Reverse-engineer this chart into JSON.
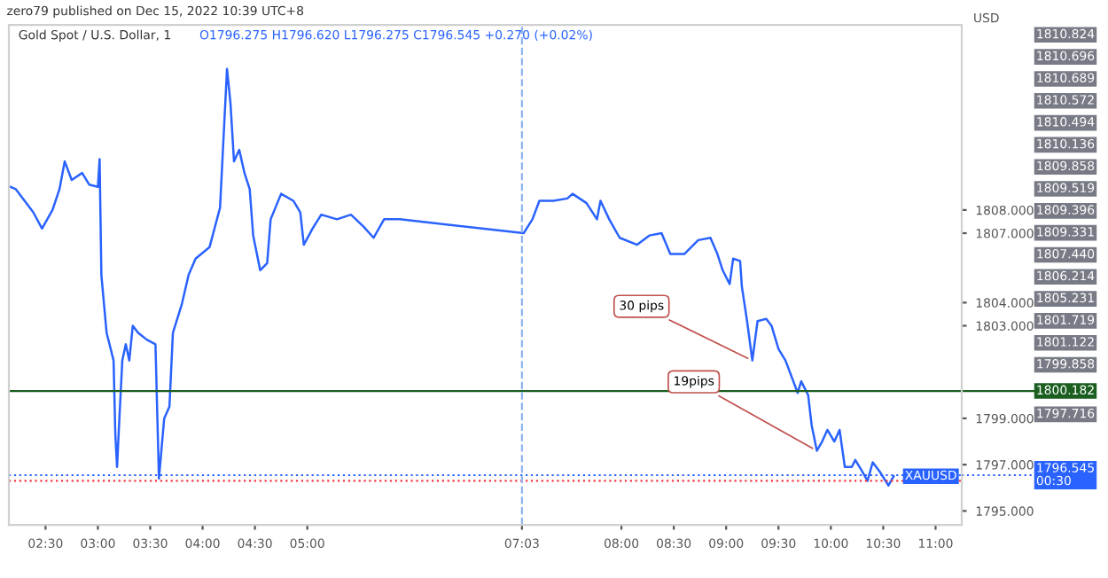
{
  "chart_data": {
    "type": "line",
    "title": "Gold Spot / U.S. Dollar, 1",
    "subtitle": "O1796.275 H1796.620 L1796.275 C1796.545 +0.270 (+0.02%)",
    "ylabel": "USD",
    "x": [
      "2022-12-15T02:10",
      "2022-12-15T02:13",
      "2022-12-15T02:18",
      "2022-12-15T02:23",
      "2022-12-15T02:28",
      "2022-12-15T02:34",
      "2022-12-15T02:38",
      "2022-12-15T02:41",
      "2022-12-15T02:45",
      "2022-12-15T02:51",
      "2022-12-15T02:55",
      "2022-12-15T03:00",
      "2022-12-15T03:01",
      "2022-12-15T03:02",
      "2022-12-15T03:05",
      "2022-12-15T03:09",
      "2022-12-15T03:10",
      "2022-12-15T03:11",
      "2022-12-15T03:12",
      "2022-12-15T03:14",
      "2022-12-15T03:16",
      "2022-12-15T03:18",
      "2022-12-15T03:20",
      "2022-12-15T03:23",
      "2022-12-15T03:28",
      "2022-12-15T03:33",
      "2022-12-15T03:35",
      "2022-12-15T03:38",
      "2022-12-15T03:41",
      "2022-12-15T03:43",
      "2022-12-15T03:48",
      "2022-12-15T03:52",
      "2022-12-15T03:56",
      "2022-12-15T04:04",
      "2022-12-15T04:10",
      "2022-12-15T04:13",
      "2022-12-15T04:14",
      "2022-12-15T04:16",
      "2022-12-15T04:18",
      "2022-12-15T04:21",
      "2022-12-15T04:24",
      "2022-12-15T04:27",
      "2022-12-15T04:29",
      "2022-12-15T04:33",
      "2022-12-15T04:37",
      "2022-12-15T04:39",
      "2022-12-15T04:45",
      "2022-12-15T04:52",
      "2022-12-15T04:56",
      "2022-12-15T04:58",
      "2022-12-15T05:03",
      "2022-12-15T05:08",
      "2022-12-15T05:17",
      "2022-12-15T05:25",
      "2022-12-15T05:32",
      "2022-12-15T05:38",
      "2022-12-15T05:44",
      "2022-12-15T05:53",
      "2022-12-15T07:04",
      "2022-12-15T07:09",
      "2022-12-15T07:13",
      "2022-12-15T07:21",
      "2022-12-15T07:29",
      "2022-12-15T07:32",
      "2022-12-15T07:40",
      "2022-12-15T07:46",
      "2022-12-15T07:48",
      "2022-12-15T07:53",
      "2022-12-15T07:59",
      "2022-12-15T08:09",
      "2022-12-15T08:16",
      "2022-12-15T08:23",
      "2022-12-15T08:28",
      "2022-12-15T08:36",
      "2022-12-15T08:44",
      "2022-12-15T08:51",
      "2022-12-15T08:55",
      "2022-12-15T08:58",
      "2022-12-15T09:02",
      "2022-12-15T09:04",
      "2022-12-15T09:08",
      "2022-12-15T09:09",
      "2022-12-15T09:12",
      "2022-12-15T09:15",
      "2022-12-15T09:18",
      "2022-12-15T09:23",
      "2022-12-15T09:26",
      "2022-12-15T09:30",
      "2022-12-15T09:34",
      "2022-12-15T09:38",
      "2022-12-15T09:41",
      "2022-12-15T09:43",
      "2022-12-15T09:47",
      "2022-12-15T09:49",
      "2022-12-15T09:52",
      "2022-12-15T09:55",
      "2022-12-15T09:58",
      "2022-12-15T10:02",
      "2022-12-15T10:05",
      "2022-12-15T10:08",
      "2022-12-15T10:12",
      "2022-12-15T10:14",
      "2022-12-15T10:18",
      "2022-12-15T10:21",
      "2022-12-15T10:24",
      "2022-12-15T10:28",
      "2022-12-15T10:33",
      "2022-12-15T10:36"
    ],
    "series": [
      {
        "color": "#2962ff",
        "values": [
          1809.0,
          1808.9,
          1808.4,
          1807.9,
          1807.2,
          1808.0,
          1808.9,
          1810.1,
          1809.3,
          1809.6,
          1809.1,
          1809.0,
          1810.2,
          1805.2,
          1802.7,
          1801.5,
          1798.3,
          1796.9,
          1798.5,
          1801.5,
          1802.2,
          1801.5,
          1803.0,
          1802.7,
          1802.4,
          1802.2,
          1796.4,
          1799.0,
          1799.5,
          1802.7,
          1803.9,
          1805.2,
          1805.9,
          1806.4,
          1808.1,
          1812.6,
          1814.1,
          1812.6,
          1810.1,
          1810.6,
          1809.6,
          1808.9,
          1806.9,
          1805.4,
          1805.7,
          1807.6,
          1808.7,
          1808.4,
          1807.9,
          1806.5,
          1807.2,
          1807.8,
          1807.6,
          1807.8,
          1807.3,
          1806.8,
          1807.6,
          1807.6,
          1807.0,
          1807.6,
          1808.4,
          1808.4,
          1808.5,
          1808.7,
          1808.3,
          1807.6,
          1808.4,
          1807.6,
          1806.8,
          1806.5,
          1806.9,
          1807.0,
          1806.1,
          1806.1,
          1806.7,
          1806.8,
          1806.1,
          1805.4,
          1804.8,
          1805.9,
          1805.8,
          1804.7,
          1803.2,
          1801.5,
          1803.2,
          1803.3,
          1803.0,
          1802.0,
          1801.5,
          1800.7,
          1800.1,
          1800.6,
          1800.0,
          1798.7,
          1797.6,
          1798.0,
          1798.5,
          1798.0,
          1798.5,
          1796.9,
          1796.9,
          1797.2,
          1796.7,
          1796.3,
          1797.1,
          1796.7,
          1796.1,
          1796.5
        ]
      }
    ],
    "xlim": [
      "2022-12-15T02:09",
      "2022-12-15T11:15"
    ],
    "ylim": [
      1794.4,
      1816.0
    ],
    "xticks": [
      {
        "value": "2022-12-15T02:30",
        "label": "02:30"
      },
      {
        "value": "2022-12-15T03:00",
        "label": "03:00"
      },
      {
        "value": "2022-12-15T03:30",
        "label": "03:30"
      },
      {
        "value": "2022-12-15T04:00",
        "label": "04:00"
      },
      {
        "value": "2022-12-15T04:30",
        "label": "04:30"
      },
      {
        "value": "2022-12-15T05:00",
        "label": "05:00"
      },
      {
        "value": "2022-12-15T07:03",
        "label": "07:03"
      },
      {
        "value": "2022-12-15T08:00",
        "label": "08:00"
      },
      {
        "value": "2022-12-15T08:30",
        "label": "08:30"
      },
      {
        "value": "2022-12-15T09:00",
        "label": "09:00"
      },
      {
        "value": "2022-12-15T09:30",
        "label": "09:30"
      },
      {
        "value": "2022-12-15T10:00",
        "label": "10:00"
      },
      {
        "value": "2022-12-15T10:30",
        "label": "10:30"
      },
      {
        "value": "2022-12-15T11:00",
        "label": "11:00"
      }
    ],
    "yticks": [
      {
        "value": 1795,
        "label": "1795.000"
      },
      {
        "value": 1797,
        "label": "1797.000"
      },
      {
        "value": 1799,
        "label": "1799.000"
      },
      {
        "value": 1803,
        "label": "1803.000"
      },
      {
        "value": 1804,
        "label": "1804.000"
      },
      {
        "value": 1807,
        "label": "1807.000"
      },
      {
        "value": 1808,
        "label": "1808.000"
      }
    ],
    "grid": false,
    "ref_lines": [
      {
        "axis": "y",
        "value": 1800.182,
        "label": "1800.182",
        "color": "#1b5e20",
        "line_style": "solid"
      },
      {
        "axis": "y",
        "value": 1796.545,
        "label": "1796.545\n00:30",
        "color": "#2962ff",
        "line_style": "dotted"
      },
      {
        "axis": "y",
        "value": 1796.3,
        "color": "#f23645",
        "line_style": "dotted"
      },
      {
        "axis": "x",
        "value": "2022-12-15T07:03",
        "color": "#90b4f0",
        "line_style": "dashed"
      }
    ],
    "annotations": [
      "zero79 published on Dec 15, 2022 10:39 UTC+8",
      {
        "text": "30 pips",
        "x": "2022-12-15T09:15",
        "y": 1801.5
      },
      {
        "text": "19pips",
        "x": "2022-12-15T09:52",
        "y": 1797.6
      },
      "XAUUSD",
      "1810.824",
      "1810.696",
      "1810.689",
      "1810.572",
      "1810.494",
      "1810.136",
      "1809.858",
      "1809.519",
      "1809.396",
      "1809.331",
      "1807.440",
      "1806.214",
      "1805.231",
      "1801.719",
      "1801.122",
      "1799.858",
      "1797.716"
    ]
  }
}
